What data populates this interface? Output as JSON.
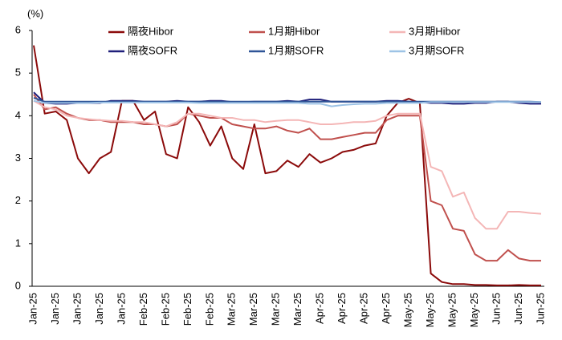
{
  "chart_data": {
    "type": "line",
    "y_label": "(%)",
    "categories": [
      "Jan-25",
      null,
      "Jan-25",
      null,
      "Jan-25",
      null,
      "Jan-25",
      null,
      "Jan-25",
      null,
      "Feb-25",
      null,
      "Feb-25",
      null,
      "Feb-25",
      null,
      "Feb-25",
      null,
      "Mar-25",
      null,
      "Mar-25",
      null,
      "Mar-25",
      null,
      "Mar-25",
      null,
      "Apr-25",
      null,
      "Apr-25",
      null,
      "Apr-25",
      null,
      "Apr-25",
      null,
      "May-25",
      null,
      "May-25",
      null,
      "May-25",
      null,
      "May-25",
      null,
      "Jun-25",
      null,
      "Jun-25",
      null,
      "Jun-25"
    ],
    "series": [
      {
        "name": "隔夜Hibor",
        "color": "#8b0a0a",
        "values": [
          5.65,
          4.05,
          4.1,
          3.9,
          3.0,
          2.65,
          3.0,
          3.15,
          4.35,
          4.35,
          3.9,
          4.1,
          3.1,
          3.0,
          4.2,
          3.85,
          3.3,
          3.75,
          3.0,
          2.75,
          3.8,
          2.65,
          2.7,
          2.95,
          2.8,
          3.1,
          2.9,
          3.0,
          3.15,
          3.2,
          3.3,
          3.35,
          4.0,
          4.3,
          4.4,
          4.3,
          0.3,
          0.1,
          0.05,
          0.05,
          0.03,
          0.03,
          0.02,
          0.02,
          0.03,
          0.02,
          0.02
        ]
      },
      {
        "name": "1月期Hibor",
        "color": "#c0504d",
        "values": [
          4.5,
          4.15,
          4.2,
          4.05,
          3.95,
          3.9,
          3.9,
          3.85,
          3.85,
          3.85,
          3.8,
          3.8,
          3.75,
          3.8,
          4.05,
          4.0,
          3.95,
          3.95,
          3.8,
          3.75,
          3.7,
          3.7,
          3.75,
          3.65,
          3.6,
          3.7,
          3.45,
          3.45,
          3.5,
          3.55,
          3.6,
          3.6,
          3.9,
          4.0,
          4.0,
          4.0,
          2.0,
          1.9,
          1.35,
          1.3,
          0.75,
          0.6,
          0.6,
          0.85,
          0.65,
          0.6,
          0.6
        ]
      },
      {
        "name": "3月期Hibor",
        "color": "#f4b6b6",
        "values": [
          4.35,
          4.2,
          4.15,
          4.0,
          3.95,
          3.92,
          3.9,
          3.88,
          3.88,
          3.85,
          3.85,
          3.8,
          3.75,
          3.85,
          4.05,
          4.05,
          4.0,
          3.95,
          3.95,
          3.9,
          3.9,
          3.85,
          3.88,
          3.9,
          3.9,
          3.85,
          3.8,
          3.8,
          3.82,
          3.85,
          3.85,
          3.88,
          4.0,
          4.05,
          4.05,
          4.05,
          2.8,
          2.7,
          2.1,
          2.2,
          1.6,
          1.35,
          1.35,
          1.75,
          1.75,
          1.72,
          1.7
        ]
      },
      {
        "name": "隔夜SOFR",
        "color": "#1f1f7a",
        "values": [
          4.55,
          4.3,
          4.28,
          4.28,
          4.3,
          4.3,
          4.3,
          4.35,
          4.35,
          4.35,
          4.33,
          4.33,
          4.33,
          4.35,
          4.33,
          4.33,
          4.35,
          4.35,
          4.32,
          4.32,
          4.33,
          4.33,
          4.33,
          4.35,
          4.33,
          4.38,
          4.38,
          4.33,
          4.33,
          4.33,
          4.33,
          4.33,
          4.35,
          4.35,
          4.33,
          4.32,
          4.3,
          4.3,
          4.28,
          4.28,
          4.3,
          4.3,
          4.33,
          4.33,
          4.3,
          4.28,
          4.28
        ]
      },
      {
        "name": "1月期SOFR",
        "color": "#2f5597",
        "values": [
          4.42,
          4.33,
          4.33,
          4.33,
          4.33,
          4.33,
          4.33,
          4.33,
          4.33,
          4.33,
          4.33,
          4.33,
          4.33,
          4.33,
          4.33,
          4.33,
          4.33,
          4.33,
          4.33,
          4.33,
          4.33,
          4.33,
          4.33,
          4.33,
          4.33,
          4.33,
          4.33,
          4.33,
          4.33,
          4.33,
          4.33,
          4.33,
          4.33,
          4.33,
          4.33,
          4.33,
          4.33,
          4.33,
          4.33,
          4.33,
          4.33,
          4.33,
          4.33,
          4.33,
          4.33,
          4.33,
          4.32
        ]
      },
      {
        "name": "3月期SOFR",
        "color": "#9dc3e6",
        "values": [
          4.35,
          4.3,
          4.3,
          4.3,
          4.3,
          4.3,
          4.31,
          4.31,
          4.31,
          4.31,
          4.31,
          4.31,
          4.31,
          4.31,
          4.31,
          4.3,
          4.3,
          4.3,
          4.3,
          4.3,
          4.3,
          4.3,
          4.3,
          4.3,
          4.3,
          4.28,
          4.28,
          4.22,
          4.25,
          4.27,
          4.28,
          4.28,
          4.3,
          4.3,
          4.3,
          4.3,
          4.32,
          4.32,
          4.32,
          4.32,
          4.32,
          4.32,
          4.32,
          4.32,
          4.32,
          4.32,
          4.32
        ]
      }
    ],
    "ylim": [
      0,
      6
    ],
    "yticks": [
      0,
      1,
      2,
      3,
      4,
      5,
      6
    ],
    "grid": false
  }
}
